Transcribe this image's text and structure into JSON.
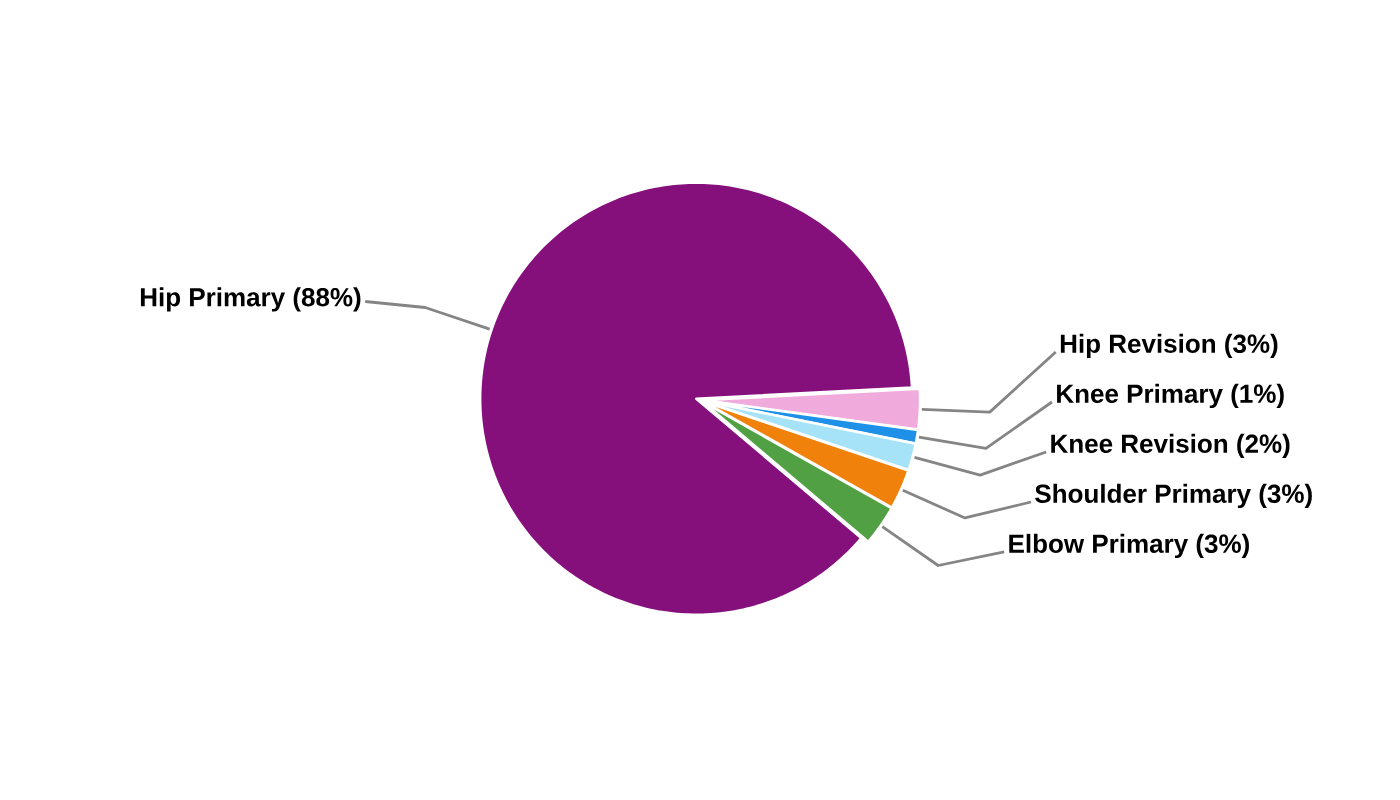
{
  "chart_data": {
    "type": "pie",
    "categories": [
      "Hip Primary (88%)",
      "Hip Revision (3%)",
      "Knee Primary (1%)",
      "Knee Revision (2%)",
      "Shoulder Primary (3%)",
      "Elbow Primary (3%)"
    ],
    "values": [
      88,
      3,
      1,
      2,
      3,
      3
    ],
    "colors": [
      "#85107c",
      "#f0aadc",
      "#1e90e8",
      "#a6e3f9",
      "#f0820c",
      "#52a044"
    ]
  }
}
